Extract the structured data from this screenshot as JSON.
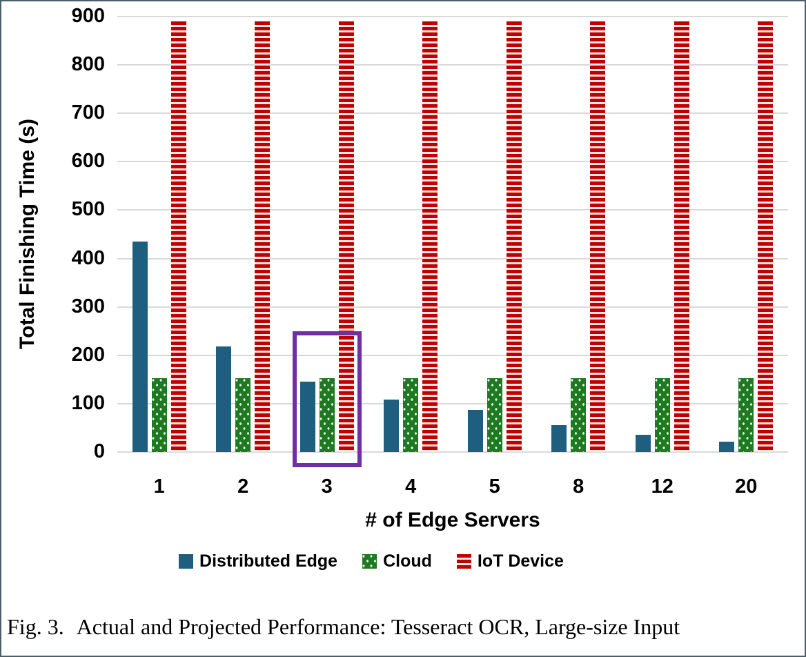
{
  "chart_data": {
    "type": "bar",
    "title": "",
    "xlabel": "# of Edge Servers",
    "ylabel": "Total Finishing Time (s)",
    "categories": [
      "1",
      "2",
      "3",
      "4",
      "5",
      "8",
      "12",
      "20"
    ],
    "series": [
      {
        "name": "Distributed Edge",
        "color": "#1E5F80",
        "pattern": "solid",
        "values": [
          435,
          218,
          145,
          109,
          87,
          55,
          36,
          22
        ]
      },
      {
        "name": "Cloud",
        "color": "#1E7A20",
        "pattern": "dots",
        "values": [
          152,
          152,
          152,
          152,
          152,
          152,
          152,
          152
        ]
      },
      {
        "name": "IoT Device",
        "color": "#C00000",
        "pattern": "hstripes",
        "values": [
          890,
          890,
          890,
          890,
          890,
          890,
          890,
          890
        ]
      }
    ],
    "ylim": [
      0,
      900
    ],
    "ytick_step": 100,
    "grid": true,
    "legend_position": "bottom",
    "annotation": {
      "type": "highlight-box",
      "category": "3",
      "color": "#7030A0",
      "top_value": 250
    }
  },
  "caption": {
    "label": "Fig. 3.",
    "text": "Actual and Projected Performance: Tesseract OCR, Large-size Input"
  },
  "colors": {
    "grid": "#D9D9D9",
    "frame": "#4A5F6A",
    "text": "#000000"
  }
}
